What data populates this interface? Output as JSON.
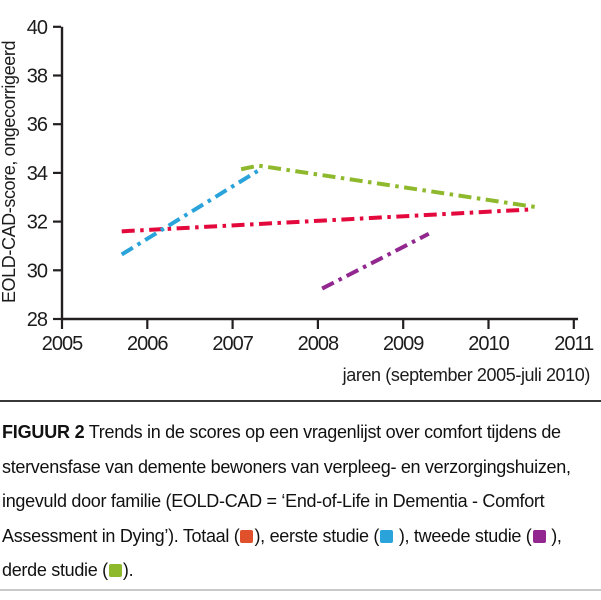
{
  "chart_data": {
    "type": "line",
    "title": "",
    "ylabel": "EOLD-CAD-score, ongecorrigeerd",
    "xlabel": "jaren (september 2005-juli 2010)",
    "xlim": [
      2005,
      2011
    ],
    "ylim": [
      28,
      40
    ],
    "xticks": [
      2005,
      2006,
      2007,
      2008,
      2009,
      2010,
      2011
    ],
    "yticks": [
      28,
      30,
      32,
      34,
      36,
      38,
      40
    ],
    "grid": false,
    "legend_position": "in-caption",
    "line_style": "dash-dot",
    "axis_color": "#231f20",
    "series": [
      {
        "name": "Totaal",
        "color": "#e4093d",
        "points": [
          [
            2005.7,
            31.6
          ],
          [
            2010.5,
            32.5
          ]
        ]
      },
      {
        "name": "eerste studie",
        "color": "#2aa3db",
        "points": [
          [
            2005.7,
            30.65
          ],
          [
            2007.35,
            34.2
          ]
        ]
      },
      {
        "name": "tweede studie",
        "color": "#92278f",
        "points": [
          [
            2008.05,
            29.25
          ],
          [
            2009.3,
            31.5
          ]
        ]
      },
      {
        "name": "derde studie",
        "color": "#8fb92d",
        "points": [
          [
            2007.1,
            34.15
          ],
          [
            2007.3,
            34.3
          ],
          [
            2010.55,
            32.6
          ]
        ]
      }
    ]
  },
  "caption": {
    "segments": [
      {
        "type": "bold",
        "text": "FIGUUR 2"
      },
      {
        "type": "text",
        "text": "  Trends in de scores op een vragenlijst over comfort tijdens de stervensfase van demente bewoners van verpleeg- en verzorgingshuizen, ingevuld door familie (EOLD-CAD = ‘End-of-Life in Dementia - Comfort Assessment in Dying’). Totaal ("
      },
      {
        "type": "swatch",
        "name": "totaal-swatch",
        "color": "#e0502b"
      },
      {
        "type": "text",
        "text": "), eerste studie ("
      },
      {
        "type": "swatch",
        "name": "eerste-studie-swatch",
        "color": "#2aa3db"
      },
      {
        "type": "text",
        "text": " ), tweede studie ("
      },
      {
        "type": "swatch",
        "name": "tweede-studie-swatch",
        "color": "#92278f"
      },
      {
        "type": "text",
        "text": " ), derde studie ("
      },
      {
        "type": "swatch",
        "name": "derde-studie-swatch",
        "color": "#8fb92d"
      },
      {
        "type": "text",
        "text": ")."
      }
    ]
  }
}
